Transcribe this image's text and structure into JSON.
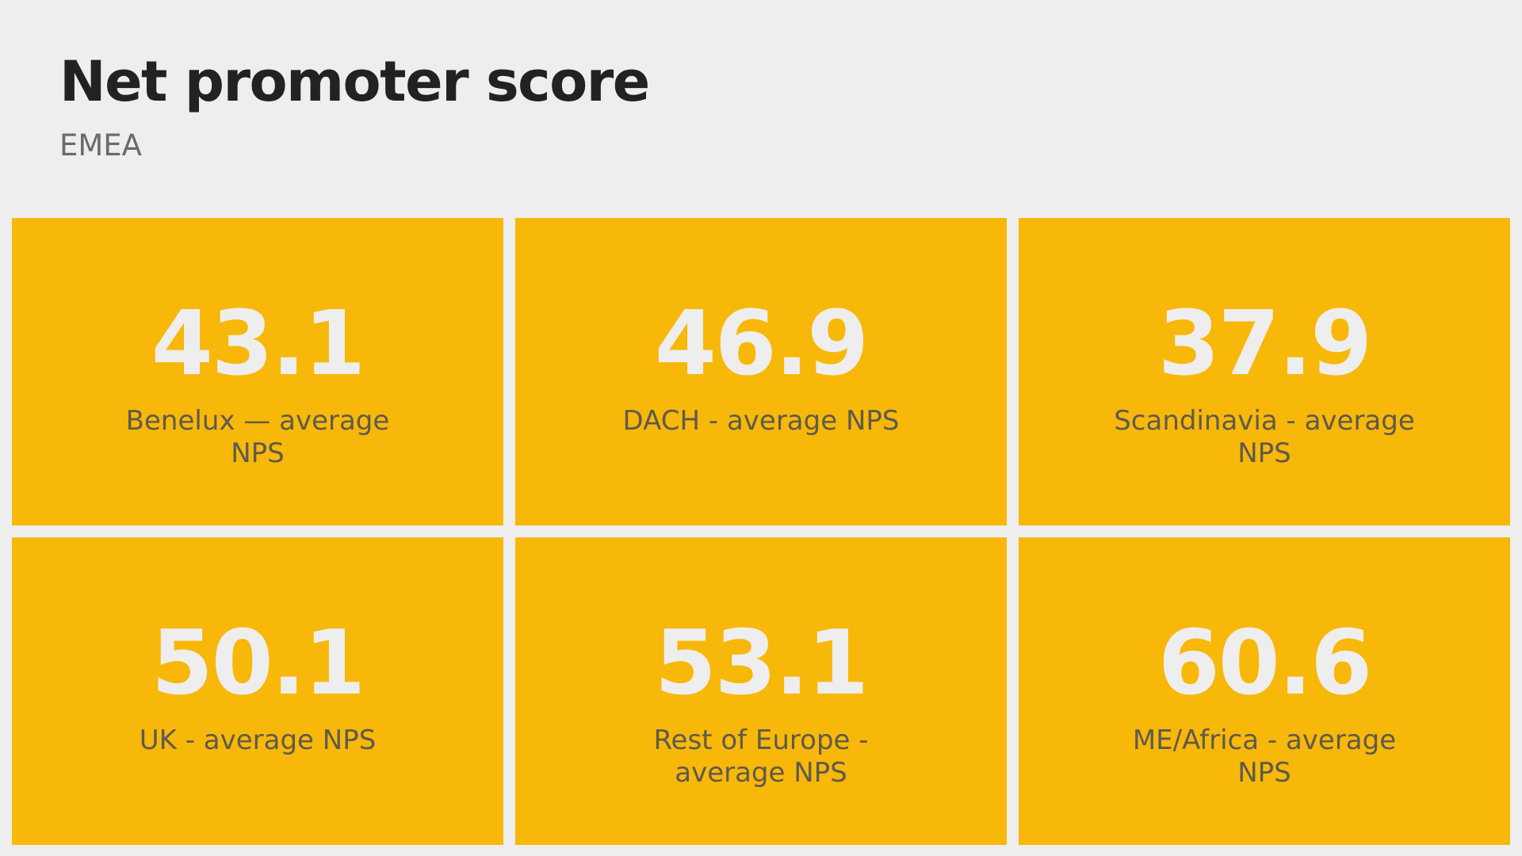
{
  "header": {
    "title": "Net promoter score",
    "subtitle": "EMEA"
  },
  "colors": {
    "background": "#eeeeee",
    "card": "#f8b80a",
    "value_text": "#eeeeee",
    "label_text": "#5e5a4c",
    "title_text": "#222222",
    "subtitle_text": "#6a6a6a"
  },
  "cards": [
    {
      "value": "43.1",
      "label": "Benelux — average NPS"
    },
    {
      "value": "46.9",
      "label": "DACH - average NPS"
    },
    {
      "value": "37.9",
      "label": "Scandinavia - average NPS"
    },
    {
      "value": "50.1",
      "label": "UK - average NPS"
    },
    {
      "value": "53.1",
      "label": "Rest of Europe - average NPS"
    },
    {
      "value": "60.6",
      "label": "ME/Africa - average NPS"
    }
  ]
}
